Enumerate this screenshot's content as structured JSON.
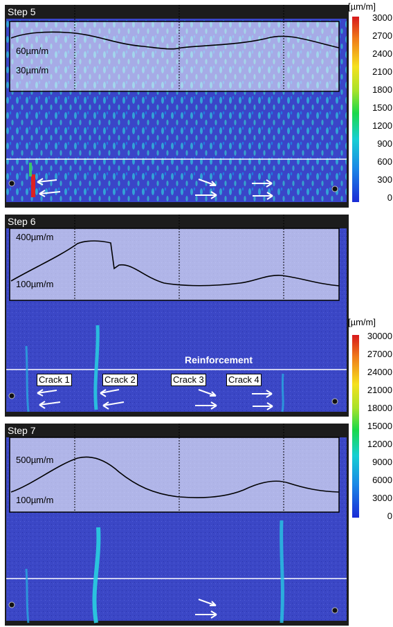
{
  "panels": [
    {
      "label": "Step 5",
      "curve_labels": [
        "60µm/m",
        "30µm/m"
      ]
    },
    {
      "label": "Step 6",
      "curve_labels": [
        "400µm/m",
        "100µm/m"
      ]
    },
    {
      "label": "Step 7",
      "curve_labels": [
        "500µm/m",
        "100µm/m"
      ]
    }
  ],
  "crack_labels": [
    "Crack 1",
    "Crack 2",
    "Crack 3",
    "Crack 4"
  ],
  "reinforcement_label": "Reinforcement",
  "scales": [
    {
      "unit": "[µm/m]",
      "ticks": [
        "3000",
        "2700",
        "2400",
        "2100",
        "1800",
        "1500",
        "1200",
        "900",
        "600",
        "300",
        "0"
      ]
    },
    {
      "unit": "[µm/m]",
      "ticks": [
        "30000",
        "27000",
        "24000",
        "21000",
        "18000",
        "15000",
        "12000",
        "9000",
        "6000",
        "3000",
        "0"
      ]
    }
  ],
  "colors": {
    "surface": "#3a45c8",
    "overlay": "#c8cdf2",
    "frame": "#1f1f1f",
    "crack": "#29c9e0",
    "scale_top": "#d7191c",
    "scale_bottom": "#1b2bd6"
  }
}
